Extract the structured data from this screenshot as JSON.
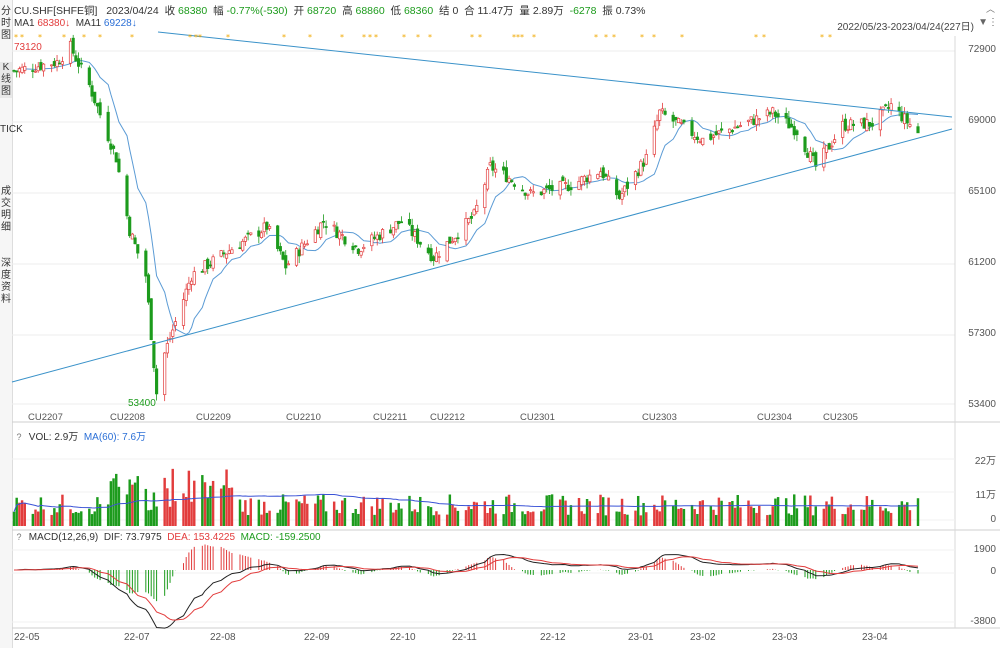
{
  "sidebar": {
    "tabs": [
      {
        "label": "分时图",
        "active": false
      },
      {
        "label": "K线图",
        "active": true
      },
      {
        "label": "TICK",
        "active": false
      },
      {
        "label": "成交明细",
        "active": false
      },
      {
        "label": "深度资料",
        "active": false
      }
    ]
  },
  "header": {
    "symbol": "CU.SHF[SHFE铜]",
    "date": "2023/04/24",
    "close_label": "收",
    "close": "68380",
    "change_label": "幅",
    "change": "-0.77%(-530)",
    "open_label": "开",
    "open": "68720",
    "high_label": "高",
    "high": "68860",
    "low_label": "低",
    "low": "68360",
    "settle_label": "结",
    "settle": "0",
    "turnover_label": "合",
    "turnover": "11.47万",
    "oi_label": "量",
    "oi": "2.89万",
    "oi_change": "-6278",
    "amp_label": "振",
    "amp": "0.73%",
    "range": "2022/05/23-2023/04/24(227日)",
    "ma1": "MA1",
    "ma1_val": "68380",
    "ma11": "MA11",
    "ma11_val": "69228"
  },
  "colors": {
    "up": "#e23c3c",
    "down": "#1c9b1c",
    "ma": "#5b9bd5",
    "trend": "#3a92c9",
    "vol_ma": "#3a52d6",
    "dif": "#222222",
    "dea": "#e23c3c",
    "star": "#f0a800"
  },
  "price_panel": {
    "yticks": [
      "72900",
      "69000",
      "65100",
      "61200",
      "57300",
      "53400"
    ],
    "max_label": "73120",
    "min_label": "53400",
    "contracts": [
      "CU2207",
      "CU2208",
      "CU2209",
      "CU2210",
      "CU2211",
      "CU2212",
      "CU2301",
      "CU2303",
      "CU2304",
      "CU2305"
    ]
  },
  "volume_panel": {
    "title": "VOL: 2.9万",
    "ma_title": "MA(60): 7.6万",
    "yticks": [
      "22万",
      "11万",
      "0"
    ]
  },
  "macd_panel": {
    "title": "MACD(12,26,9)",
    "dif": "DIF: 73.7975",
    "dea": "DEA: 153.4225",
    "macd": "MACD: -159.2500",
    "yticks": [
      "1900",
      "0",
      "-3800"
    ]
  },
  "x_axis": [
    "22-05",
    "22-07",
    "22-08",
    "22-09",
    "22-10",
    "22-11",
    "22-12",
    "23-01",
    "23-02",
    "23-03",
    "23-04"
  ],
  "chart_data": {
    "type": "candlestick",
    "title": "CU.SHF[SHFE铜]",
    "date_range": [
      "2022/05/23",
      "2023/04/24"
    ],
    "price_ylim": [
      53400,
      72900
    ],
    "anchors": [
      {
        "date": "2022-05-23",
        "close": 71800
      },
      {
        "date": "2022-06-08",
        "close": 72300
      },
      {
        "date": "2022-06-13",
        "close": 73120
      },
      {
        "date": "2022-06-20",
        "close": 71000
      },
      {
        "date": "2022-06-30",
        "close": 67000
      },
      {
        "date": "2022-07-05",
        "close": 63000
      },
      {
        "date": "2022-07-11",
        "close": 60500
      },
      {
        "date": "2022-07-15",
        "close": 54000
      },
      {
        "date": "2022-07-18",
        "close": 56200
      },
      {
        "date": "2022-07-28",
        "close": 60500
      },
      {
        "date": "2022-08-10",
        "close": 61800
      },
      {
        "date": "2022-08-25",
        "close": 63200
      },
      {
        "date": "2022-09-01",
        "close": 61000
      },
      {
        "date": "2022-09-15",
        "close": 63500
      },
      {
        "date": "2022-09-28",
        "close": 62000
      },
      {
        "date": "2022-10-14",
        "close": 63500
      },
      {
        "date": "2022-10-26",
        "close": 61500
      },
      {
        "date": "2022-11-10",
        "close": 63800
      },
      {
        "date": "2022-11-16",
        "close": 66500
      },
      {
        "date": "2022-11-22",
        "close": 66000
      },
      {
        "date": "2022-12-01",
        "close": 65000
      },
      {
        "date": "2022-12-16",
        "close": 65500
      },
      {
        "date": "2022-12-27",
        "close": 66300
      },
      {
        "date": "2023-01-03",
        "close": 64800
      },
      {
        "date": "2023-01-13",
        "close": 67000
      },
      {
        "date": "2023-01-18",
        "close": 69500
      },
      {
        "date": "2023-02-03",
        "close": 68000
      },
      {
        "date": "2023-02-17",
        "close": 68800
      },
      {
        "date": "2023-03-01",
        "close": 69500
      },
      {
        "date": "2023-03-10",
        "close": 68500
      },
      {
        "date": "2023-03-17",
        "close": 66500
      },
      {
        "date": "2023-03-27",
        "close": 68800
      },
      {
        "date": "2023-04-07",
        "close": 68900
      },
      {
        "date": "2023-04-14",
        "close": 69900
      },
      {
        "date": "2023-04-24",
        "close": 68380
      }
    ],
    "volume_ylim": [
      0,
      220000
    ],
    "volume_ma60_latest": 76000,
    "macd_ylim": [
      -3800,
      1900
    ],
    "macd_latest": {
      "dif": 73.7975,
      "dea": 153.4225,
      "macd": -159.25
    }
  }
}
